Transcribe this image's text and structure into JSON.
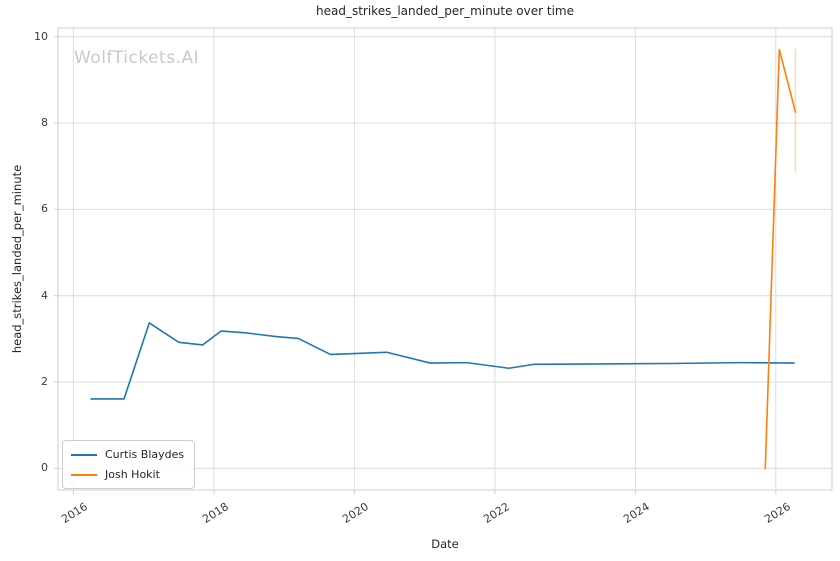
{
  "watermark": "WolfTickets.AI",
  "chart_data": {
    "type": "line",
    "title": "head_strikes_landed_per_minute over time",
    "xlabel": "Date",
    "ylabel": "head_strikes_landed_per_minute",
    "grid": true,
    "legend_position": "lower left",
    "xlim": [
      2015.78,
      2026.8
    ],
    "ylim": [
      -0.5,
      10.2
    ],
    "xticks": [
      2016,
      2018,
      2020,
      2022,
      2024,
      2026
    ],
    "xtick_labels": [
      "2016",
      "2018",
      "2020",
      "2022",
      "2024",
      "2026"
    ],
    "yticks": [
      0,
      2,
      4,
      6,
      8,
      10
    ],
    "ytick_labels": [
      "0",
      "2",
      "4",
      "6",
      "8",
      "10"
    ],
    "series": [
      {
        "name": "Curtis Blaydes",
        "color": "#1f77b4",
        "x": [
          2016.25,
          2016.72,
          2017.08,
          2017.5,
          2017.84,
          2018.1,
          2018.45,
          2018.9,
          2019.2,
          2019.66,
          2020.0,
          2020.46,
          2021.08,
          2021.6,
          2022.2,
          2022.55,
          2023.5,
          2024.5,
          2025.5,
          2026.26
        ],
        "y": [
          1.61,
          1.61,
          3.37,
          2.92,
          2.86,
          3.18,
          3.14,
          3.05,
          3.01,
          2.64,
          2.66,
          2.69,
          2.44,
          2.45,
          2.32,
          2.41,
          2.42,
          2.43,
          2.45,
          2.44
        ]
      },
      {
        "name": "Josh Hokit",
        "color": "#ff7f0e",
        "x": [
          2025.85,
          2026.05,
          2026.28
        ],
        "y": [
          0.0,
          9.7,
          8.25
        ]
      }
    ],
    "error_bars": [
      {
        "series": "Josh Hokit",
        "x": 2026.28,
        "y_low": 6.85,
        "y_high": 9.72,
        "color": "#ff7f0e"
      }
    ]
  }
}
